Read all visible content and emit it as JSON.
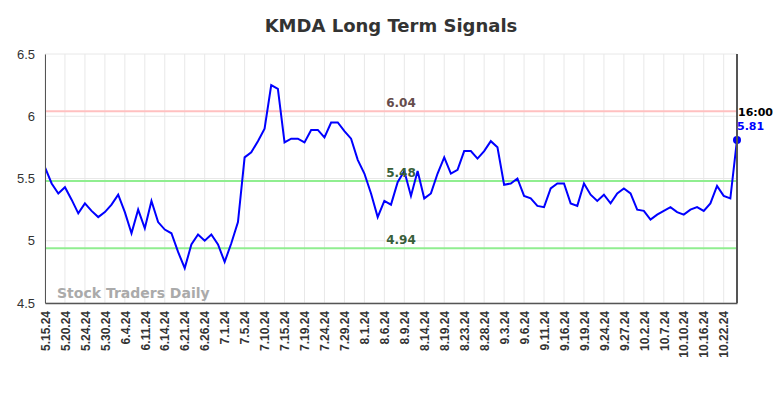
{
  "chart_data": {
    "type": "line",
    "title": "KMDA Long Term Signals",
    "watermark": "Stock Traders Daily",
    "time_label": "16:00",
    "categories": [
      "5.15.24",
      null,
      null,
      "5.20.24",
      null,
      null,
      "5.24.24",
      null,
      null,
      "5.30.24",
      null,
      null,
      "6.4.24",
      null,
      null,
      "6.11.24",
      null,
      null,
      "6.14.24",
      null,
      null,
      "6.21.24",
      null,
      null,
      "6.26.24",
      null,
      null,
      "7.1.24",
      null,
      null,
      "7.5.24",
      null,
      null,
      "7.10.24",
      null,
      null,
      "7.15.24",
      null,
      null,
      "7.19.24",
      null,
      null,
      "7.24.24",
      null,
      null,
      "7.29.24",
      null,
      null,
      "8.1.24",
      null,
      null,
      "8.6.24",
      null,
      null,
      "8.9.24",
      null,
      null,
      "8.14.24",
      null,
      null,
      "8.19.24",
      null,
      null,
      "8.23.24",
      null,
      null,
      "8.28.24",
      null,
      null,
      "9.3.24",
      null,
      null,
      "9.6.24",
      null,
      null,
      "9.11.24",
      null,
      null,
      "9.16.24",
      null,
      null,
      "9.19.24",
      null,
      null,
      "9.24.24",
      null,
      null,
      "9.27.24",
      null,
      null,
      "10.2.24",
      null,
      null,
      "10.7.24",
      null,
      null,
      "10.10.24",
      null,
      null,
      "10.16.24",
      null,
      null,
      "10.22.24",
      null,
      null
    ],
    "series": [
      {
        "name": "KMDA",
        "color": "#0000ff",
        "marker": "circle",
        "values": [
          5.59,
          5.46,
          5.38,
          5.43,
          5.33,
          5.22,
          5.3,
          5.24,
          5.19,
          5.23,
          5.29,
          5.37,
          5.23,
          5.06,
          5.25,
          5.1,
          5.32,
          5.15,
          5.09,
          5.06,
          4.91,
          4.78,
          4.97,
          5.05,
          5.0,
          5.05,
          4.97,
          4.83,
          4.98,
          5.15,
          5.67,
          5.71,
          5.8,
          5.9,
          6.25,
          6.22,
          5.79,
          5.82,
          5.82,
          5.79,
          5.89,
          5.89,
          5.83,
          5.95,
          5.95,
          5.88,
          5.82,
          5.65,
          5.54,
          5.38,
          5.19,
          5.32,
          5.29,
          5.47,
          5.56,
          5.36,
          5.56,
          5.34,
          5.38,
          5.54,
          5.67,
          5.54,
          5.57,
          5.72,
          5.72,
          5.66,
          5.72,
          5.8,
          5.75,
          5.45,
          5.46,
          5.5,
          5.36,
          5.34,
          5.28,
          5.27,
          5.42,
          5.46,
          5.46,
          5.3,
          5.28,
          5.46,
          5.37,
          5.32,
          5.37,
          5.3,
          5.38,
          5.42,
          5.38,
          5.25,
          5.24,
          5.17,
          5.21,
          5.24,
          5.27,
          5.23,
          5.21,
          5.25,
          5.27,
          5.24,
          5.3,
          5.44,
          5.36,
          5.34,
          5.81
        ]
      }
    ],
    "levels": [
      {
        "value": 6.04,
        "color": "#ffc0c0"
      },
      {
        "value": 5.48,
        "color": "#90ee90"
      },
      {
        "value": 4.94,
        "color": "#90ee90"
      }
    ],
    "ylim": [
      4.5,
      6.5
    ],
    "yticks": [
      4.5,
      5,
      5.5,
      6,
      6.5
    ],
    "grid": true
  }
}
